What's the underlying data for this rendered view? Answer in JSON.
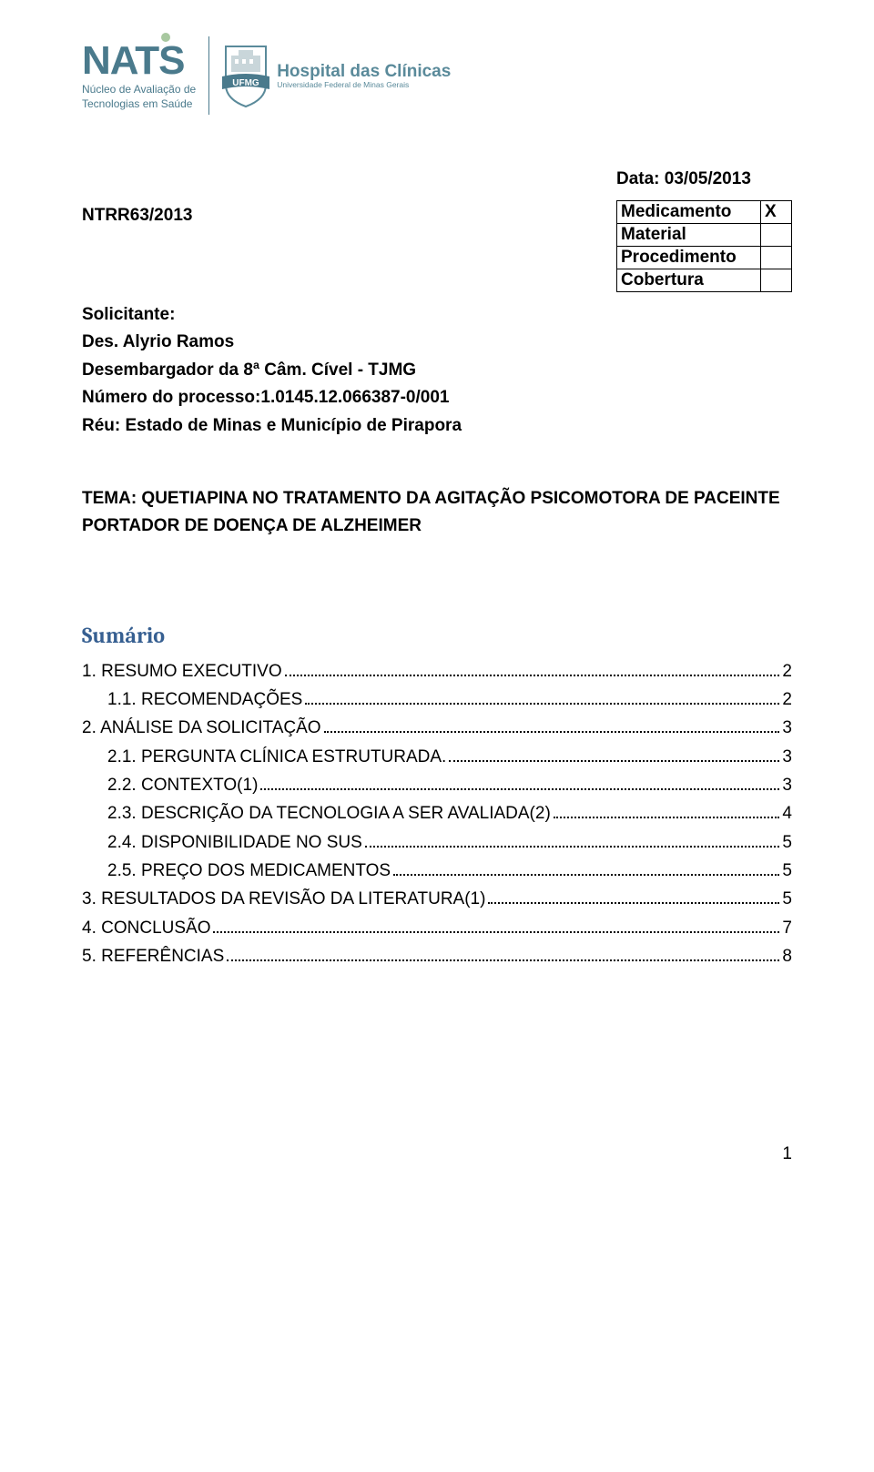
{
  "logos": {
    "nats": {
      "wordmark": "NATS",
      "sub1": "Núcleo de Avaliação de",
      "sub2": "Tecnologias em Saúde",
      "primary_color": "#4a7a8c",
      "accent_color": "#a8c8a0"
    },
    "hc": {
      "ufmg_band": "UFMG",
      "title": "Hospital das Clínicas",
      "sub": "Universidade Federal de Minas Gerais",
      "color": "#5a8a9a",
      "band_fill": "#4a7a8c"
    }
  },
  "date_label": "Data: 03/05/2013",
  "doc_id": "NTRR63/2013",
  "meta_table": {
    "rows": [
      {
        "label": "Medicamento",
        "mark": "X"
      },
      {
        "label": "Material",
        "mark": ""
      },
      {
        "label": "Procedimento",
        "mark": ""
      },
      {
        "label": "Cobertura",
        "mark": ""
      }
    ]
  },
  "case": {
    "solicitante_label": "Solicitante:",
    "line1": "Des. Alyrio Ramos",
    "line2": "Desembargador da 8ª Câm. Cível - TJMG",
    "proc_label": "Número do processo:",
    "proc_num": "1.0145.12.066387-0/001",
    "reu": "Réu: Estado de Minas e Município de Pirapora"
  },
  "tema": "TEMA: QUETIAPINA NO TRATAMENTO DA AGITAÇÃO PSICOMOTORA DE PACEINTE PORTADOR DE DOENÇA DE ALZHEIMER",
  "sumario_title": "Sumário",
  "toc": [
    {
      "level": 0,
      "label": "1.   RESUMO EXECUTIVO",
      "page": "2"
    },
    {
      "level": 1,
      "label": "1.1.   RECOMENDAÇÕES",
      "page": "2"
    },
    {
      "level": 0,
      "label": "2.   ANÁLISE DA SOLICITAÇÃO",
      "page": "3"
    },
    {
      "level": 1,
      "label": "2.1.   PERGUNTA CLÍNICA ESTRUTURADA.",
      "page": "3"
    },
    {
      "level": 1,
      "label": "2.2.   CONTEXTO(1)",
      "page": "3"
    },
    {
      "level": 1,
      "label": "2.3.   DESCRIÇÃO DA TECNOLOGIA A SER AVALIADA(2)",
      "page": "4"
    },
    {
      "level": 1,
      "label": "2.4.   DISPONIBILIDADE NO SUS",
      "page": "5"
    },
    {
      "level": 1,
      "label": "2.5.   PREÇO DOS MEDICAMENTOS",
      "page": "5"
    },
    {
      "level": 0,
      "label": "3.   RESULTADOS DA REVISÃO DA LITERATURA(1)",
      "page": "5"
    },
    {
      "level": 0,
      "label": "4.   CONCLUSÃO",
      "page": "7"
    },
    {
      "level": 0,
      "label": "5.   REFERÊNCIAS",
      "page": "8"
    }
  ],
  "page_number": "1"
}
